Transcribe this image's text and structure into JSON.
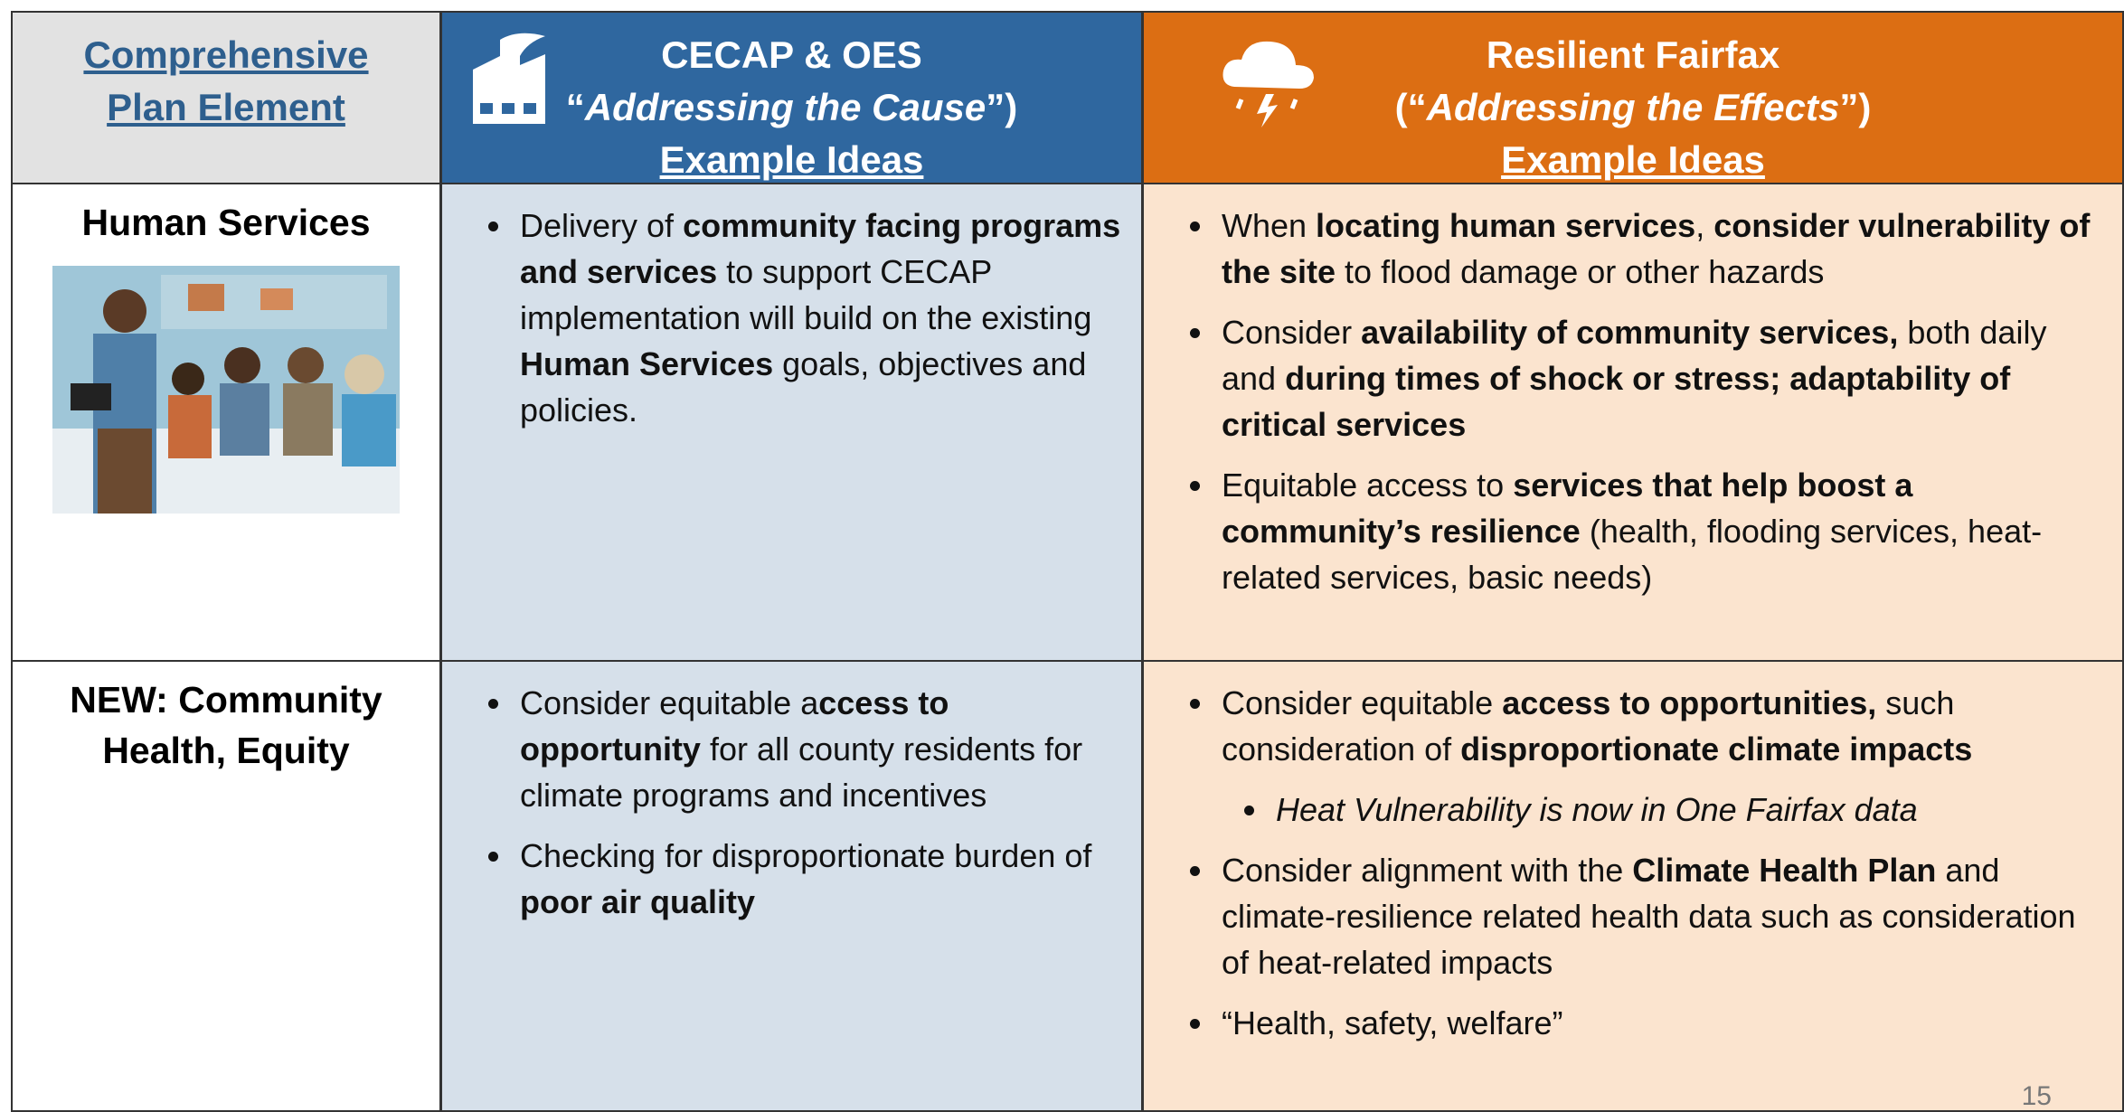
{
  "header": {
    "element": "Comprehensive Plan Element",
    "cecap": {
      "title": "CECAP & OES",
      "subtitle": [
        {
          "text": "“"
        },
        {
          "text": "Addressing the Cause",
          "italic": true
        },
        {
          "text": "”)"
        }
      ],
      "ideas": "Example Ideas"
    },
    "resilient": {
      "title": "Resilient Fairfax",
      "subtitle": [
        {
          "text": "(“"
        },
        {
          "text": "Addressing the Effects",
          "italic": true
        },
        {
          "text": "”)"
        }
      ],
      "ideas": "Example Ideas"
    }
  },
  "rows": [
    {
      "element": "Human Services",
      "cecap": [
        [
          {
            "text": "Delivery of "
          },
          {
            "text": "community facing programs and services",
            "bold": true
          },
          {
            "text": " to support CECAP implementation will build on the existing "
          },
          {
            "text": "Human Services",
            "bold": true
          },
          {
            "text": " goals, objectives and policies."
          }
        ]
      ],
      "resilient": [
        [
          {
            "text": "When "
          },
          {
            "text": "locating human services",
            "bold": true
          },
          {
            "text": ", "
          },
          {
            "text": "consider vulnerability of the site",
            "bold": true
          },
          {
            "text": " to flood damage or other hazards"
          }
        ],
        [
          {
            "text": "Consider "
          },
          {
            "text": "availability of community services,",
            "bold": true
          },
          {
            "text": " both daily and "
          },
          {
            "text": "during times of shock or stress; adaptability of critical services",
            "bold": true
          }
        ],
        [
          {
            "text": "Equitable access to "
          },
          {
            "text": "services that help boost a community’s resilience",
            "bold": true
          },
          {
            "text": " (health, flooding services, heat-related services, basic needs)"
          }
        ]
      ]
    },
    {
      "element": "NEW: Community Health, Equity",
      "cecap": [
        [
          {
            "text": "Consider equitable a"
          },
          {
            "text": "ccess to opportunity",
            "bold": true
          },
          {
            "text": " for all county residents for climate programs and incentives"
          }
        ],
        [
          {
            "text": "Checking for disproportionate burden of "
          },
          {
            "text": "poor air quality",
            "bold": true
          }
        ]
      ],
      "resilient": [
        [
          {
            "text": "Consider equitable "
          },
          {
            "text": "access to opportunities,",
            "bold": true
          },
          {
            "text": " such consideration of "
          },
          {
            "text": "disproportionate climate impacts",
            "bold": true
          }
        ],
        [
          {
            "text": "Heat Vulnerability is now in One Fairfax data",
            "italic": true,
            "sub": true
          }
        ],
        [
          {
            "text": "Consider alignment with the "
          },
          {
            "text": "Climate Health Plan",
            "bold": true
          },
          {
            "text": " and climate-resilience related health data such as consideration of heat-related impacts"
          }
        ],
        [
          {
            "text": "“Health, safety, welfare”"
          }
        ]
      ]
    }
  ],
  "page_number": "15"
}
